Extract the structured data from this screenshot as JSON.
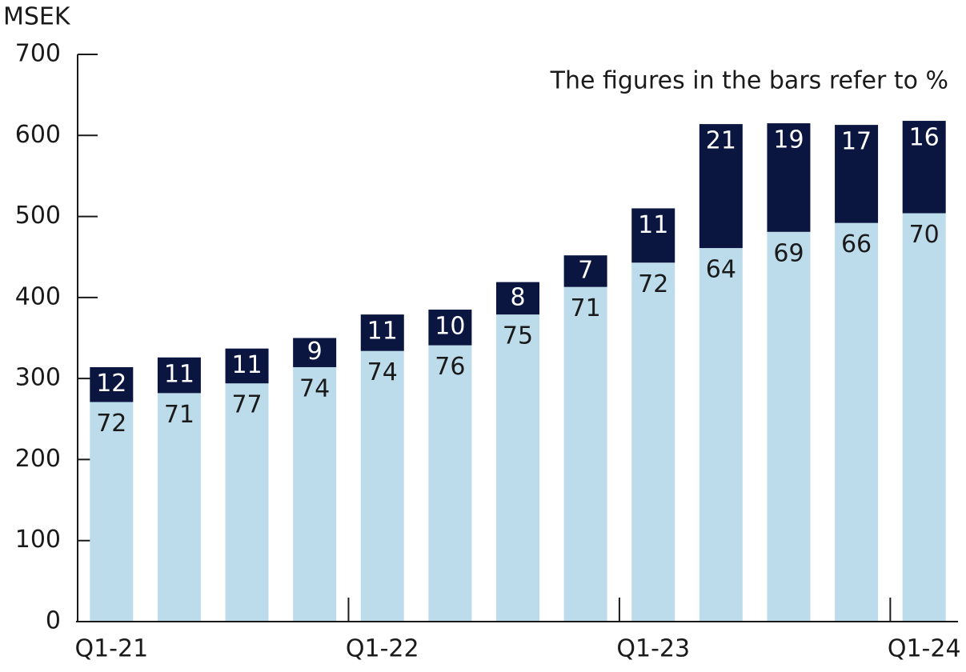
{
  "chart_data": {
    "type": "stacked_bar",
    "y_unit": "MSEK",
    "annotation": "The figures in the bars refer to %",
    "categories": [
      "Q1-21",
      null,
      null,
      null,
      "Q1-22",
      null,
      null,
      null,
      "Q1-23",
      null,
      null,
      null,
      "Q1-24"
    ],
    "series": [
      {
        "color": "#bcdbeb",
        "values": [
          271,
          282,
          294,
          314,
          334,
          341,
          379,
          413,
          443,
          461,
          481,
          492,
          504
        ],
        "percentages": [
          72,
          71,
          77,
          74,
          74,
          76,
          75,
          71,
          72,
          64,
          69,
          66,
          70
        ]
      },
      {
        "color": "#0b1640",
        "values": [
          43,
          44,
          43,
          36,
          45,
          44,
          40,
          39,
          67,
          153,
          134,
          121,
          114
        ],
        "percentages": [
          12,
          11,
          11,
          9,
          11,
          10,
          8,
          7,
          11,
          21,
          19,
          17,
          16
        ]
      }
    ],
    "ylim": [
      0,
      700
    ],
    "yticks": [
      0,
      100,
      200,
      300,
      400,
      500,
      600,
      700
    ]
  }
}
